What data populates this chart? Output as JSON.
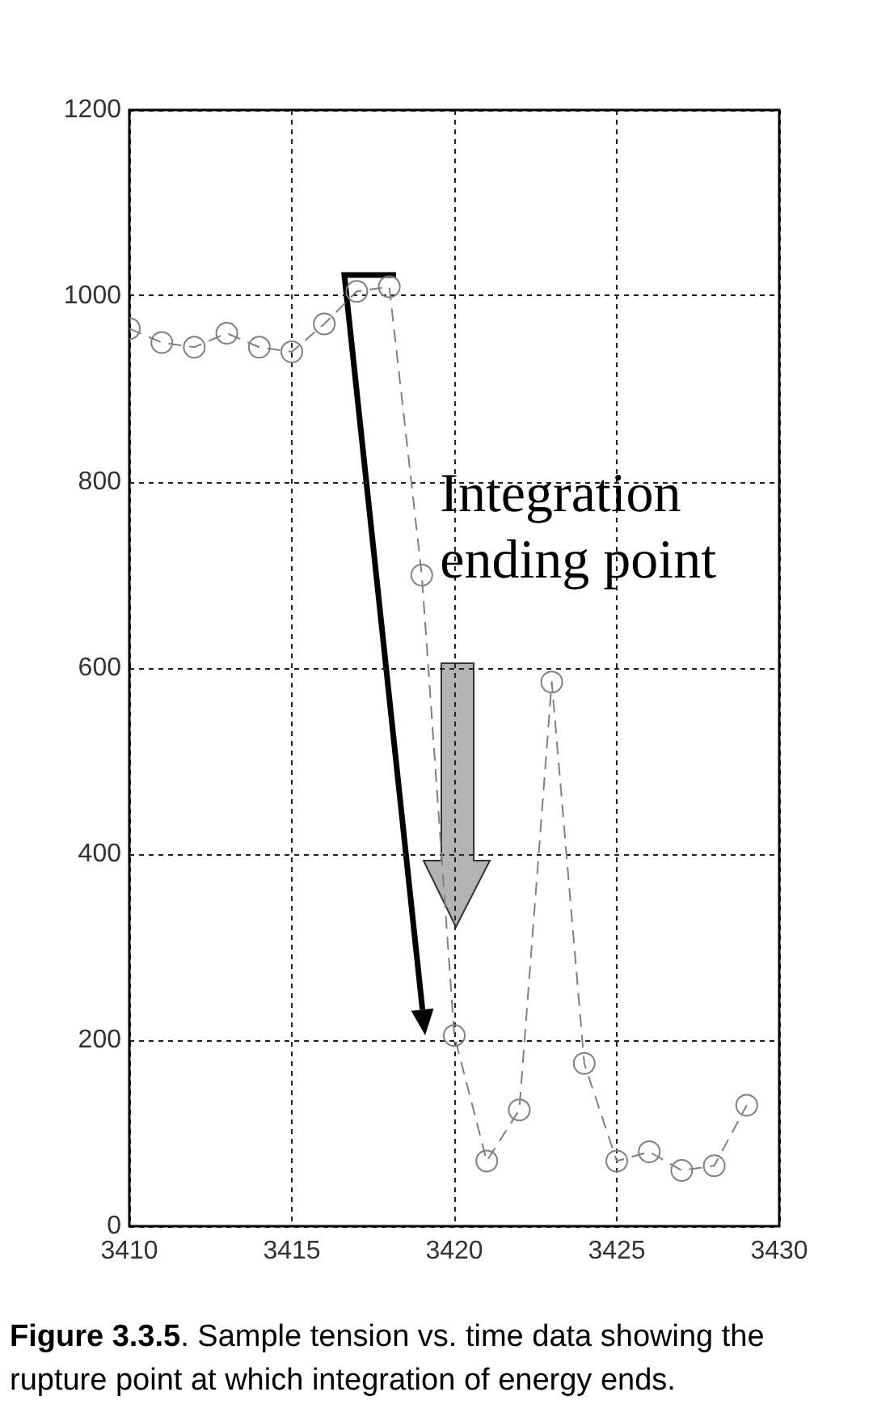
{
  "chart_data": {
    "type": "line",
    "x": [
      3410,
      3411,
      3412,
      3413,
      3414,
      3415,
      3416,
      3417,
      3418,
      3419,
      3420,
      3421,
      3422,
      3423,
      3424,
      3425,
      3426,
      3427,
      3428,
      3429
    ],
    "series": [
      {
        "color": "#808080",
        "values": [
          965,
          950,
          945,
          960,
          945,
          940,
          970,
          1005,
          1010,
          700,
          205,
          70,
          125,
          585,
          175,
          70,
          80,
          60,
          65,
          130
        ]
      }
    ],
    "xlim": [
      3410,
      3430
    ],
    "xticks": [
      3410,
      3415,
      3420,
      3425,
      3430
    ],
    "ylim": [
      0,
      1200
    ],
    "yticks": [
      0,
      200,
      400,
      600,
      800,
      1000,
      1200
    ],
    "grid": true,
    "marker": "circle",
    "line_style": "dashed",
    "annotations": [
      "Integration ending point",
      "Figure 3.3.5. Sample tension vs. time data showing the rupture point at which integration of energy ends."
    ]
  }
}
